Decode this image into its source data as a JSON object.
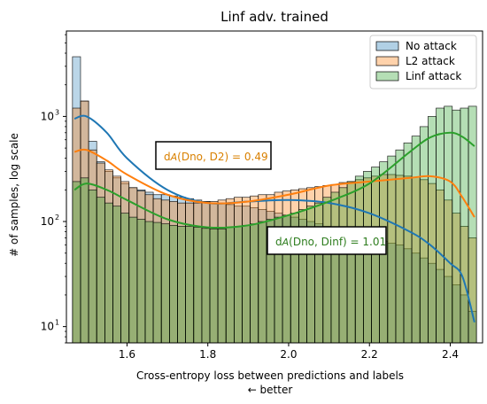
{
  "chart_data": {
    "type": "histogram",
    "title": "Linf adv. trained",
    "xlabel": "Cross-entropy loss between predictions and labels",
    "xlabel_note": "← better",
    "ylabel": "# of samples, log scale",
    "yscale": "log",
    "xlim": [
      1.45,
      2.48
    ],
    "ylim": [
      7,
      6500
    ],
    "xticks": [
      1.6,
      1.8,
      2.0,
      2.2,
      2.4
    ],
    "yticks": [
      10,
      100,
      1000
    ],
    "ytick_labels": [
      {
        "base": "10",
        "exp": "1"
      },
      {
        "base": "10",
        "exp": "2"
      },
      {
        "base": "10",
        "exp": "3"
      }
    ],
    "bins": {
      "start": 1.465,
      "width": 0.02,
      "count": 50
    },
    "legend_position": "upper right",
    "series": [
      {
        "name": "No attack",
        "color": "#1f77b4",
        "values": [
          3700,
          1400,
          580,
          370,
          300,
          260,
          230,
          210,
          200,
          190,
          180,
          180,
          175,
          170,
          165,
          160,
          155,
          150,
          150,
          145,
          140,
          140,
          135,
          130,
          125,
          120,
          115,
          110,
          105,
          100,
          95,
          90,
          85,
          80,
          78,
          75,
          72,
          70,
          65,
          62,
          60,
          55,
          50,
          45,
          40,
          35,
          30,
          25,
          20,
          14
        ]
      },
      {
        "name": "L2 attack",
        "color": "#ff7f0e",
        "values": [
          1200,
          1400,
          480,
          360,
          310,
          270,
          240,
          210,
          195,
          180,
          165,
          160,
          155,
          150,
          150,
          150,
          155,
          155,
          160,
          165,
          170,
          170,
          175,
          180,
          180,
          190,
          195,
          200,
          205,
          210,
          215,
          220,
          225,
          235,
          240,
          250,
          260,
          270,
          280,
          280,
          275,
          270,
          265,
          250,
          230,
          200,
          160,
          120,
          90,
          70
        ]
      },
      {
        "name": "Linf attack",
        "color": "#2ca02c",
        "values": [
          240,
          260,
          200,
          170,
          150,
          140,
          120,
          110,
          105,
          100,
          98,
          95,
          92,
          90,
          90,
          88,
          86,
          85,
          85,
          88,
          90,
          92,
          95,
          100,
          105,
          110,
          115,
          120,
          130,
          140,
          150,
          170,
          190,
          210,
          240,
          270,
          300,
          330,
          370,
          420,
          480,
          560,
          650,
          800,
          1000,
          1200,
          1250,
          1150,
          1200,
          1250
        ]
      }
    ],
    "kde_curves": [
      {
        "series": "No attack",
        "x": [
          1.47,
          1.5,
          1.55,
          1.6,
          1.7,
          1.8,
          1.9,
          2.0,
          2.1,
          2.2,
          2.3,
          2.35,
          2.4,
          2.43,
          2.46
        ],
        "y": [
          950,
          1000,
          700,
          400,
          200,
          150,
          155,
          160,
          150,
          120,
          80,
          60,
          40,
          30,
          11
        ]
      },
      {
        "series": "L2 attack",
        "x": [
          1.47,
          1.5,
          1.55,
          1.6,
          1.7,
          1.8,
          1.9,
          2.0,
          2.1,
          2.2,
          2.3,
          2.35,
          2.4,
          2.43,
          2.46
        ],
        "y": [
          460,
          480,
          380,
          280,
          180,
          150,
          155,
          180,
          220,
          240,
          260,
          270,
          240,
          170,
          110
        ]
      },
      {
        "series": "Linf attack",
        "x": [
          1.47,
          1.5,
          1.55,
          1.6,
          1.7,
          1.8,
          1.9,
          2.0,
          2.1,
          2.2,
          2.3,
          2.35,
          2.4,
          2.43,
          2.46
        ],
        "y": [
          200,
          230,
          200,
          160,
          105,
          88,
          92,
          115,
          155,
          230,
          460,
          630,
          700,
          640,
          520
        ]
      }
    ],
    "annotations": [
      {
        "label": "d",
        "sub": "A",
        "args": "(Dno, D2) = 0.49",
        "color": "#d98000"
      },
      {
        "label": "d",
        "sub": "A",
        "args": "(Dno, Dinf) = 1.01",
        "color": "#2e7d1e"
      }
    ]
  }
}
